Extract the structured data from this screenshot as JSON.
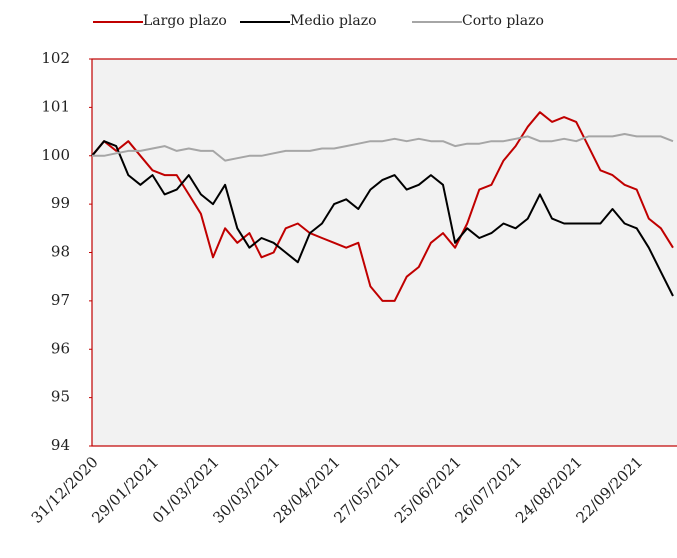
{
  "chart_data": {
    "type": "line",
    "categories": [
      "31/12/2020",
      null,
      null,
      null,
      null,
      "29/01/2021",
      null,
      null,
      null,
      null,
      "01/03/2021",
      null,
      null,
      null,
      null,
      "30/03/2021",
      null,
      null,
      null,
      null,
      "28/04/2021",
      null,
      null,
      null,
      null,
      "27/05/2021",
      null,
      null,
      null,
      null,
      "25/06/2021",
      null,
      null,
      null,
      null,
      "26/07/2021",
      null,
      null,
      null,
      null,
      "24/08/2021",
      null,
      null,
      null,
      null,
      "22/09/2021",
      null,
      null,
      null
    ],
    "series": [
      {
        "name": "Largo plazo",
        "color": "#c00000",
        "values": [
          100,
          100.3,
          100.1,
          100.3,
          100.0,
          99.7,
          99.6,
          99.6,
          99.2,
          98.8,
          97.9,
          98.5,
          98.2,
          98.4,
          97.9,
          98.0,
          98.5,
          98.6,
          98.4,
          98.3,
          98.2,
          98.1,
          98.2,
          97.3,
          97.0,
          97.0,
          97.5,
          97.7,
          98.2,
          98.4,
          98.1,
          98.6,
          99.3,
          99.4,
          99.9,
          100.2,
          100.6,
          100.9,
          100.7,
          100.8,
          100.7,
          100.2,
          99.7,
          99.6,
          99.4,
          99.3,
          98.7,
          98.5,
          98.1
        ]
      },
      {
        "name": "Medio plazo",
        "color": "#000000",
        "values": [
          100,
          100.3,
          100.2,
          99.6,
          99.4,
          99.6,
          99.2,
          99.3,
          99.6,
          99.2,
          99.0,
          99.4,
          98.5,
          98.1,
          98.3,
          98.2,
          98.0,
          97.8,
          98.4,
          98.6,
          99.0,
          99.1,
          98.9,
          99.3,
          99.5,
          99.6,
          99.3,
          99.4,
          99.6,
          99.4,
          98.2,
          98.5,
          98.3,
          98.4,
          98.6,
          98.5,
          98.7,
          99.2,
          98.7,
          98.6,
          98.6,
          98.6,
          98.6,
          98.9,
          98.6,
          98.5,
          98.1,
          97.6,
          97.1
        ]
      },
      {
        "name": "Corto plazo",
        "color": "#a6a6a6",
        "values": [
          100,
          100,
          100.05,
          100.1,
          100.1,
          100.15,
          100.2,
          100.1,
          100.15,
          100.1,
          100.1,
          99.9,
          99.95,
          100.0,
          100.0,
          100.05,
          100.1,
          100.1,
          100.1,
          100.15,
          100.15,
          100.2,
          100.25,
          100.3,
          100.3,
          100.35,
          100.3,
          100.35,
          100.3,
          100.3,
          100.2,
          100.25,
          100.25,
          100.3,
          100.3,
          100.35,
          100.4,
          100.3,
          100.3,
          100.35,
          100.3,
          100.4,
          100.4,
          100.4,
          100.45,
          100.4,
          100.4,
          100.4,
          100.3
        ]
      }
    ],
    "ylim": [
      94,
      102
    ],
    "yticks": [
      94,
      95,
      96,
      97,
      98,
      99,
      100,
      101,
      102
    ],
    "grid": false,
    "legend": "top"
  }
}
